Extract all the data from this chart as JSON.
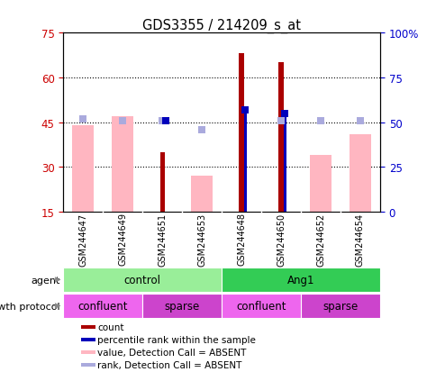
{
  "title": "GDS3355 / 214209_s_at",
  "samples": [
    "GSM244647",
    "GSM244649",
    "GSM244651",
    "GSM244653",
    "GSM244648",
    "GSM244650",
    "GSM244652",
    "GSM244654"
  ],
  "ylim_left": [
    15,
    75
  ],
  "ylim_right": [
    0,
    100
  ],
  "yticks_left": [
    15,
    30,
    45,
    60,
    75
  ],
  "yticks_right": [
    0,
    25,
    50,
    75,
    100
  ],
  "ytick_right_labels": [
    "0",
    "25",
    "50",
    "75",
    "100%"
  ],
  "grid_lines_at": [
    30,
    45,
    60
  ],
  "count_bars": {
    "values": [
      null,
      null,
      35,
      null,
      68,
      65,
      null,
      null
    ],
    "color": "#AA0000"
  },
  "rank_bars_present": {
    "values": [
      null,
      null,
      null,
      null,
      57,
      55,
      null,
      null
    ],
    "color": "#0000BB"
  },
  "absent_value_bars": {
    "values": [
      44,
      47,
      null,
      27,
      null,
      null,
      34,
      41
    ],
    "color": "#FFB6C1"
  },
  "absent_rank_dots": {
    "values": [
      52,
      51,
      51,
      46,
      null,
      51,
      51,
      51
    ],
    "color": "#AAAADD"
  },
  "present_rank_dots": {
    "values": [
      null,
      null,
      51,
      null,
      57,
      55,
      null,
      null
    ],
    "color": "#0000BB"
  },
  "agent_groups": [
    {
      "label": "control",
      "start": 0,
      "end": 4,
      "color": "#99EE99"
    },
    {
      "label": "Ang1",
      "start": 4,
      "end": 8,
      "color": "#33CC55"
    }
  ],
  "growth_groups": [
    {
      "label": "confluent",
      "start": 0,
      "end": 2,
      "color": "#EE66EE"
    },
    {
      "label": "sparse",
      "start": 2,
      "end": 4,
      "color": "#CC44CC"
    },
    {
      "label": "confluent",
      "start": 4,
      "end": 6,
      "color": "#EE66EE"
    },
    {
      "label": "sparse",
      "start": 6,
      "end": 8,
      "color": "#CC44CC"
    }
  ],
  "legend_items": [
    {
      "label": "count",
      "color": "#AA0000"
    },
    {
      "label": "percentile rank within the sample",
      "color": "#0000BB"
    },
    {
      "label": "value, Detection Call = ABSENT",
      "color": "#FFB6C1"
    },
    {
      "label": "rank, Detection Call = ABSENT",
      "color": "#AAAADD"
    }
  ],
  "gray_band_color": "#C8C8C8",
  "background_color": "#FFFFFF",
  "left_tick_color": "#CC0000",
  "right_tick_color": "#0000CC",
  "absent_bar_width": 0.55,
  "count_bar_width": 0.12,
  "rank_bar_width": 0.08,
  "dot_size": 6
}
